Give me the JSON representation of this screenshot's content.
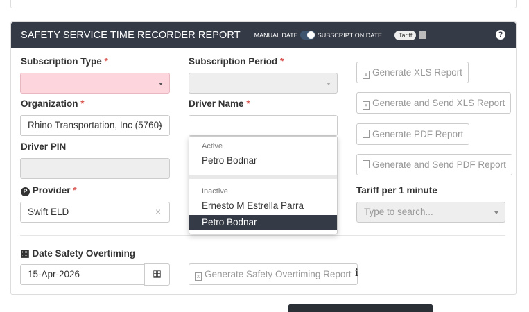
{
  "header": {
    "title": "SAFETY SERVICE TIME RECORDER REPORT",
    "manual_date": "MANUAL DATE",
    "subscription_date": "SUBSCRIPTION DATE",
    "tariff": "Tariff",
    "help": "?"
  },
  "form": {
    "subscription_type": {
      "label": "Subscription Type",
      "required": "*",
      "value": ""
    },
    "subscription_period": {
      "label": "Subscription Period",
      "required": "*",
      "value": ""
    },
    "organization": {
      "label": "Organization",
      "required": "*",
      "value": "Rhino Transportation, Inc (5760)"
    },
    "driver_name": {
      "label": "Driver Name",
      "required": "*",
      "value": ""
    },
    "driver_pin": {
      "label": "Driver PIN",
      "value": ""
    },
    "provider": {
      "label": "Provider",
      "required": "*",
      "value": "Swift ELD",
      "clear": "×"
    },
    "tariff": {
      "label": "Tariff per 1 minute",
      "placeholder": "Type to search..."
    },
    "date_overtiming": {
      "label": "Date Safety Overtiming",
      "value": "15-Apr-2026"
    }
  },
  "buttons": {
    "xls": "Generate XLS Report",
    "send_xls": "Generate and Send XLS Report",
    "pdf": "Generate PDF Report",
    "send_pdf": "Generate and Send PDF Report",
    "overtiming": "Generate Safety Overtiming Report"
  },
  "dropdown": {
    "active_label": "Active",
    "active": [
      "Petro Bodnar"
    ],
    "inactive_label": "Inactive",
    "inactive": [
      "Ernesto M Estrella Parra",
      "Petro Bodnar"
    ],
    "selected": "Petro Bodnar"
  },
  "colors": {
    "header": "#343a46",
    "required": "#d9534f",
    "invalid": "#fdd5dc"
  }
}
